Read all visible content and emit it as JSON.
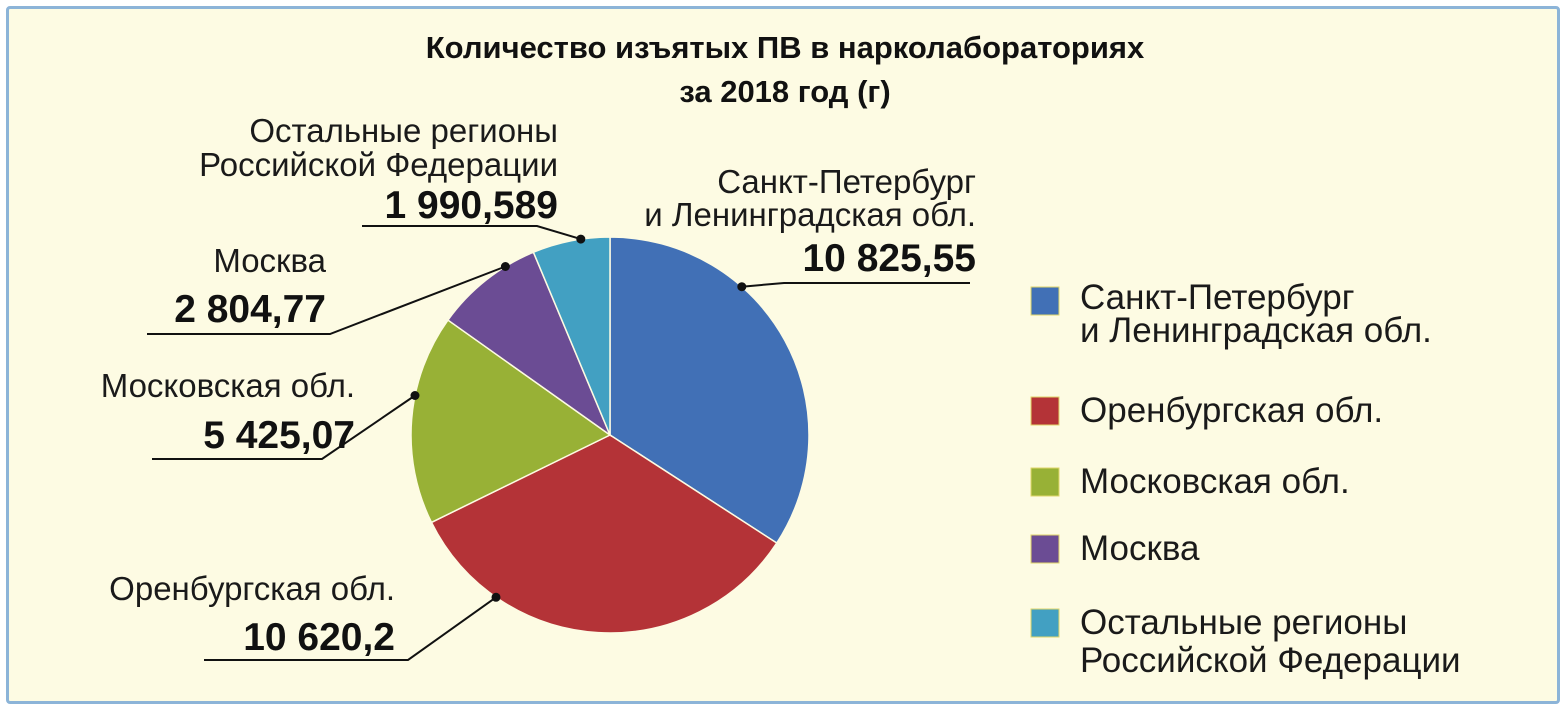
{
  "chart_data": {
    "type": "pie",
    "title": [
      "Количество изъятых ПВ в нарколабораториях",
      "за 2018 год (г)"
    ],
    "slices": [
      {
        "label_lines": [
          "Санкт-Петербург",
          "и Ленинградская обл."
        ],
        "value": 10825.55,
        "value_text": "10 825,55",
        "color": "#4170b6"
      },
      {
        "label_lines": [
          "Оренбургская обл."
        ],
        "value": 10620.2,
        "value_text": "10 620,2",
        "color": "#b43337"
      },
      {
        "label_lines": [
          "Московская обл."
        ],
        "value": 5425.07,
        "value_text": "5 425,07",
        "color": "#98b136"
      },
      {
        "label_lines": [
          "Москва"
        ],
        "value": 2804.77,
        "value_text": "2 804,77",
        "color": "#6b4c94"
      },
      {
        "label_lines": [
          "Остальные регионы",
          "Российской Федерации"
        ],
        "value": 1990.589,
        "value_text": "1 990,589",
        "color": "#42a0c2"
      }
    ],
    "legend": [
      [
        "Санкт-Петербург",
        "и Ленинградская обл."
      ],
      [
        "Оренбургская обл."
      ],
      [
        "Московская обл."
      ],
      [
        "Москва"
      ],
      [
        "Остальные регионы",
        "Российской Федерации"
      ]
    ],
    "legend_position": "right"
  }
}
